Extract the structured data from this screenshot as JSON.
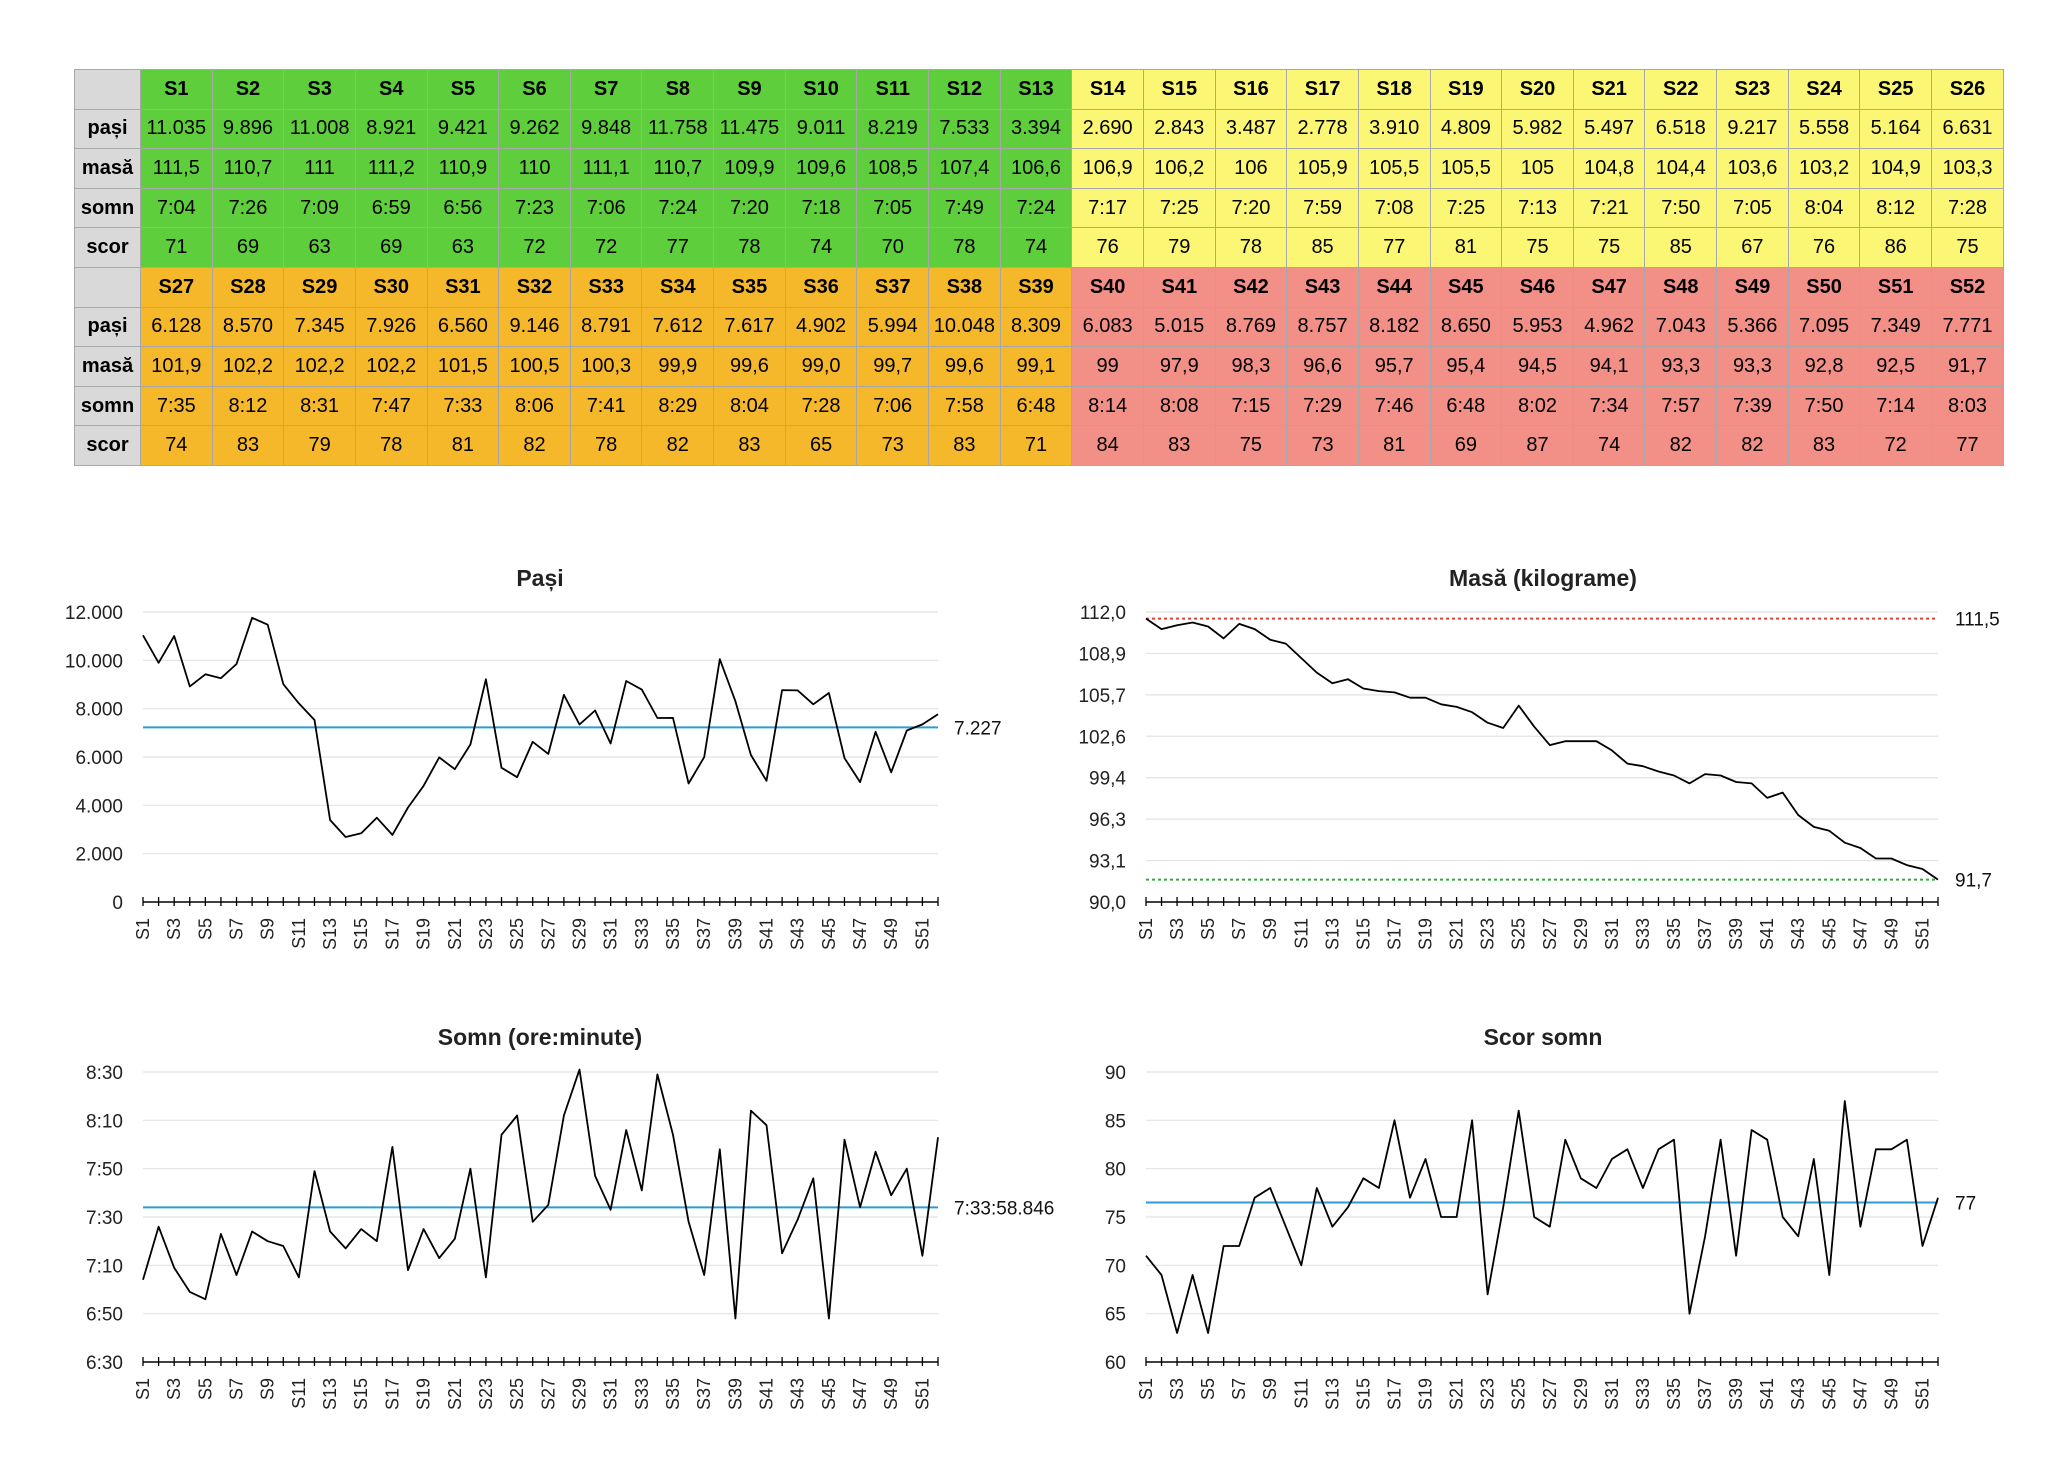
{
  "table": {
    "row_labels": [
      "pași",
      "masă",
      "somn",
      "scor"
    ],
    "blocks": [
      {
        "start": 0,
        "weeks": [
          "S1",
          "S2",
          "S3",
          "S4",
          "S5",
          "S6",
          "S7",
          "S8",
          "S9",
          "S10",
          "S11",
          "S12",
          "S13",
          "S14",
          "S15",
          "S16",
          "S17",
          "S18",
          "S19",
          "S20",
          "S21",
          "S22",
          "S23",
          "S24",
          "S25",
          "S26"
        ],
        "pasi": [
          "11.035",
          "9.896",
          "11.008",
          "8.921",
          "9.421",
          "9.262",
          "9.848",
          "11.758",
          "11.475",
          "9.011",
          "8.219",
          "7.533",
          "3.394",
          "2.690",
          "2.843",
          "3.487",
          "2.778",
          "3.910",
          "4.809",
          "5.982",
          "5.497",
          "6.518",
          "9.217",
          "5.558",
          "5.164",
          "6.631"
        ],
        "masa": [
          "111,5",
          "110,7",
          "111",
          "111,2",
          "110,9",
          "110",
          "111,1",
          "110,7",
          "109,9",
          "109,6",
          "108,5",
          "107,4",
          "106,6",
          "106,9",
          "106,2",
          "106",
          "105,9",
          "105,5",
          "105,5",
          "105",
          "104,8",
          "104,4",
          "103,6",
          "103,2",
          "104,9",
          "103,3"
        ],
        "somn": [
          "7:04",
          "7:26",
          "7:09",
          "6:59",
          "6:56",
          "7:23",
          "7:06",
          "7:24",
          "7:20",
          "7:18",
          "7:05",
          "7:49",
          "7:24",
          "7:17",
          "7:25",
          "7:20",
          "7:59",
          "7:08",
          "7:25",
          "7:13",
          "7:21",
          "7:50",
          "7:05",
          "8:04",
          "8:12",
          "7:28"
        ],
        "scor": [
          "71",
          "69",
          "63",
          "69",
          "63",
          "72",
          "72",
          "77",
          "78",
          "74",
          "70",
          "78",
          "74",
          "76",
          "79",
          "78",
          "85",
          "77",
          "81",
          "75",
          "75",
          "85",
          "67",
          "76",
          "86",
          "75"
        ]
      },
      {
        "start": 26,
        "weeks": [
          "S27",
          "S28",
          "S29",
          "S30",
          "S31",
          "S32",
          "S33",
          "S34",
          "S35",
          "S36",
          "S37",
          "S38",
          "S39",
          "S40",
          "S41",
          "S42",
          "S43",
          "S44",
          "S45",
          "S46",
          "S47",
          "S48",
          "S49",
          "S50",
          "S51",
          "S52"
        ],
        "pasi": [
          "6.128",
          "8.570",
          "7.345",
          "7.926",
          "6.560",
          "9.146",
          "8.791",
          "7.612",
          "7.617",
          "4.902",
          "5.994",
          "10.048",
          "8.309",
          "6.083",
          "5.015",
          "8.769",
          "8.757",
          "8.182",
          "8.650",
          "5.953",
          "4.962",
          "7.043",
          "5.366",
          "7.095",
          "7.349",
          "7.771"
        ],
        "masa": [
          "101,9",
          "102,2",
          "102,2",
          "102,2",
          "101,5",
          "100,5",
          "100,3",
          "99,9",
          "99,6",
          "99,0",
          "99,7",
          "99,6",
          "99,1",
          "99",
          "97,9",
          "98,3",
          "96,6",
          "95,7",
          "95,4",
          "94,5",
          "94,1",
          "93,3",
          "93,3",
          "92,8",
          "92,5",
          "91,7"
        ],
        "somn": [
          "7:35",
          "8:12",
          "8:31",
          "7:47",
          "7:33",
          "8:06",
          "7:41",
          "8:29",
          "8:04",
          "7:28",
          "7:06",
          "7:58",
          "6:48",
          "8:14",
          "8:08",
          "7:15",
          "7:29",
          "7:46",
          "6:48",
          "8:02",
          "7:34",
          "7:57",
          "7:39",
          "7:50",
          "7:14",
          "8:03"
        ],
        "scor": [
          "74",
          "83",
          "79",
          "78",
          "81",
          "82",
          "78",
          "82",
          "83",
          "65",
          "73",
          "83",
          "71",
          "84",
          "83",
          "75",
          "73",
          "81",
          "69",
          "87",
          "74",
          "82",
          "82",
          "83",
          "72",
          "77"
        ]
      }
    ],
    "quarter_colors": [
      "#5ece3c",
      "#fbf673",
      "#f5b82b",
      "#f29088"
    ]
  },
  "chart_data": [
    {
      "type": "line",
      "title": "Pași",
      "x": [
        "S1",
        "S2",
        "S3",
        "S4",
        "S5",
        "S6",
        "S7",
        "S8",
        "S9",
        "S10",
        "S11",
        "S12",
        "S13",
        "S14",
        "S15",
        "S16",
        "S17",
        "S18",
        "S19",
        "S20",
        "S21",
        "S22",
        "S23",
        "S24",
        "S25",
        "S26",
        "S27",
        "S28",
        "S29",
        "S30",
        "S31",
        "S32",
        "S33",
        "S34",
        "S35",
        "S36",
        "S37",
        "S38",
        "S39",
        "S40",
        "S41",
        "S42",
        "S43",
        "S44",
        "S45",
        "S46",
        "S47",
        "S48",
        "S49",
        "S50",
        "S51",
        "S52"
      ],
      "values": [
        11035,
        9896,
        11008,
        8921,
        9421,
        9262,
        9848,
        11758,
        11475,
        9011,
        8219,
        7533,
        3394,
        2690,
        2843,
        3487,
        2778,
        3910,
        4809,
        5982,
        5497,
        6518,
        9217,
        5558,
        5164,
        6631,
        6128,
        8570,
        7345,
        7926,
        6560,
        9146,
        8791,
        7612,
        7617,
        4902,
        5994,
        10048,
        8309,
        6083,
        5015,
        8769,
        8757,
        8182,
        8650,
        5953,
        4962,
        7043,
        5366,
        7095,
        7349,
        7771
      ],
      "ylim": [
        0,
        12000
      ],
      "yticks": [
        "0",
        "2.000",
        "4.000",
        "6.000",
        "8.000",
        "10.000",
        "12.000"
      ],
      "reference_lines": [
        {
          "value": 7227,
          "label": "7.227",
          "color": "#2e9bd6",
          "style": "solid"
        }
      ]
    },
    {
      "type": "line",
      "title": "Masă (kilograme)",
      "x": [
        "S1",
        "S2",
        "S3",
        "S4",
        "S5",
        "S6",
        "S7",
        "S8",
        "S9",
        "S10",
        "S11",
        "S12",
        "S13",
        "S14",
        "S15",
        "S16",
        "S17",
        "S18",
        "S19",
        "S20",
        "S21",
        "S22",
        "S23",
        "S24",
        "S25",
        "S26",
        "S27",
        "S28",
        "S29",
        "S30",
        "S31",
        "S32",
        "S33",
        "S34",
        "S35",
        "S36",
        "S37",
        "S38",
        "S39",
        "S40",
        "S41",
        "S42",
        "S43",
        "S44",
        "S45",
        "S46",
        "S47",
        "S48",
        "S49",
        "S50",
        "S51",
        "S52"
      ],
      "values": [
        111.5,
        110.7,
        111,
        111.2,
        110.9,
        110,
        111.1,
        110.7,
        109.9,
        109.6,
        108.5,
        107.4,
        106.6,
        106.9,
        106.2,
        106,
        105.9,
        105.5,
        105.5,
        105,
        104.8,
        104.4,
        103.6,
        103.2,
        104.9,
        103.3,
        101.9,
        102.2,
        102.2,
        102.2,
        101.5,
        100.5,
        100.3,
        99.9,
        99.6,
        99.0,
        99.7,
        99.6,
        99.1,
        99,
        97.9,
        98.3,
        96.6,
        95.7,
        95.4,
        94.5,
        94.1,
        93.3,
        93.3,
        92.8,
        92.5,
        91.7
      ],
      "ylim": [
        90,
        112
      ],
      "yticks": [
        "90,0",
        "93,1",
        "96,3",
        "99,4",
        "102,6",
        "105,7",
        "108,9",
        "112,0"
      ],
      "reference_lines": [
        {
          "value": 111.5,
          "label": "111,5",
          "color": "#e0423b",
          "style": "dotted"
        },
        {
          "value": 91.7,
          "label": "91,7",
          "color": "#3ca53c",
          "style": "dotted"
        }
      ]
    },
    {
      "type": "line",
      "title": "Somn (ore:minute)",
      "x": [
        "S1",
        "S2",
        "S3",
        "S4",
        "S5",
        "S6",
        "S7",
        "S8",
        "S9",
        "S10",
        "S11",
        "S12",
        "S13",
        "S14",
        "S15",
        "S16",
        "S17",
        "S18",
        "S19",
        "S20",
        "S21",
        "S22",
        "S23",
        "S24",
        "S25",
        "S26",
        "S27",
        "S28",
        "S29",
        "S30",
        "S31",
        "S32",
        "S33",
        "S34",
        "S35",
        "S36",
        "S37",
        "S38",
        "S39",
        "S40",
        "S41",
        "S42",
        "S43",
        "S44",
        "S45",
        "S46",
        "S47",
        "S48",
        "S49",
        "S50",
        "S51",
        "S52"
      ],
      "values": [
        424,
        446,
        429,
        419,
        416,
        443,
        426,
        444,
        440,
        438,
        425,
        469,
        444,
        437,
        445,
        440,
        479,
        428,
        445,
        433,
        441,
        470,
        425,
        484,
        492,
        448,
        455,
        492,
        511,
        467,
        453,
        486,
        461,
        509,
        484,
        448,
        426,
        478,
        408,
        494,
        488,
        435,
        449,
        466,
        408,
        482,
        454,
        477,
        459,
        470,
        434,
        483
      ],
      "units": "minutes",
      "ylim": [
        390,
        510
      ],
      "yticks": [
        "6:30",
        "6:50",
        "7:10",
        "7:30",
        "7:50",
        "8:10",
        "8:30"
      ],
      "reference_lines": [
        {
          "value": 453.98,
          "label": "7:33:58.846",
          "color": "#2e9bd6",
          "style": "solid"
        }
      ]
    },
    {
      "type": "line",
      "title": "Scor somn",
      "x": [
        "S1",
        "S2",
        "S3",
        "S4",
        "S5",
        "S6",
        "S7",
        "S8",
        "S9",
        "S10",
        "S11",
        "S12",
        "S13",
        "S14",
        "S15",
        "S16",
        "S17",
        "S18",
        "S19",
        "S20",
        "S21",
        "S22",
        "S23",
        "S24",
        "S25",
        "S26",
        "S27",
        "S28",
        "S29",
        "S30",
        "S31",
        "S32",
        "S33",
        "S34",
        "S35",
        "S36",
        "S37",
        "S38",
        "S39",
        "S40",
        "S41",
        "S42",
        "S43",
        "S44",
        "S45",
        "S46",
        "S47",
        "S48",
        "S49",
        "S50",
        "S51",
        "S52"
      ],
      "values": [
        71,
        69,
        63,
        69,
        63,
        72,
        72,
        77,
        78,
        74,
        70,
        78,
        74,
        76,
        79,
        78,
        85,
        77,
        81,
        75,
        75,
        85,
        67,
        76,
        86,
        75,
        74,
        83,
        79,
        78,
        81,
        82,
        78,
        82,
        83,
        65,
        73,
        83,
        71,
        84,
        83,
        75,
        73,
        81,
        69,
        87,
        74,
        82,
        82,
        83,
        72,
        77
      ],
      "ylim": [
        60,
        90
      ],
      "yticks": [
        "60",
        "65",
        "70",
        "75",
        "80",
        "85",
        "90"
      ],
      "reference_lines": [
        {
          "value": 76.5,
          "label": "77",
          "color": "#2e9bd6",
          "style": "solid"
        }
      ]
    }
  ]
}
